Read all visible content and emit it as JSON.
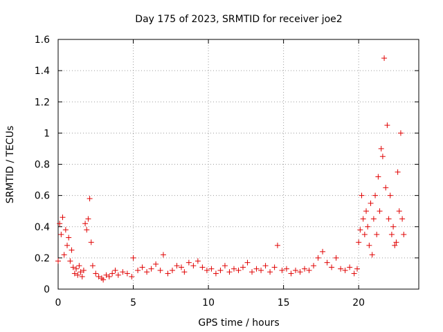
{
  "chart_data": {
    "type": "scatter",
    "title": "Day 175 of 2023, SRMTID for receiver joe2",
    "xlabel": "GPS time / hours",
    "ylabel": "SRMTID / TECUs",
    "xlim": [
      0,
      24
    ],
    "ylim": [
      0,
      1.6
    ],
    "xticks": [
      0,
      5,
      10,
      15,
      20
    ],
    "xtick_labels": [
      "0",
      "5",
      "10",
      "15",
      "20"
    ],
    "yticks": [
      0,
      0.2,
      0.4,
      0.6,
      0.8,
      1,
      1.2,
      1.4,
      1.6
    ],
    "ytick_labels": [
      "0",
      "0.2",
      "0.4",
      "0.6",
      "0.8",
      "1",
      "1.2",
      "1.4",
      "1.6"
    ],
    "grid": true,
    "marker": "+",
    "marker_color": "#e00000",
    "series": [
      {
        "name": "SRMTID",
        "x": [
          0.0,
          0.1,
          0.2,
          0.3,
          0.4,
          0.5,
          0.6,
          0.7,
          0.8,
          0.9,
          1.0,
          1.1,
          1.2,
          1.3,
          1.4,
          1.5,
          1.6,
          1.7,
          1.8,
          1.9,
          2.0,
          2.1,
          2.2,
          2.3,
          2.5,
          2.7,
          2.9,
          3.0,
          3.2,
          3.4,
          3.6,
          3.8,
          4.0,
          4.3,
          4.6,
          4.9,
          5.0,
          5.3,
          5.6,
          5.9,
          6.2,
          6.5,
          6.8,
          7.0,
          7.3,
          7.6,
          7.9,
          8.2,
          8.4,
          8.7,
          9.0,
          9.3,
          9.6,
          9.9,
          10.2,
          10.5,
          10.8,
          11.1,
          11.4,
          11.7,
          12.0,
          12.3,
          12.6,
          12.9,
          13.2,
          13.5,
          13.8,
          14.1,
          14.4,
          14.6,
          14.9,
          15.2,
          15.5,
          15.8,
          16.1,
          16.4,
          16.7,
          17.0,
          17.3,
          17.6,
          17.9,
          18.2,
          18.5,
          18.8,
          19.1,
          19.4,
          19.7,
          19.9,
          20.0,
          20.1,
          20.2,
          20.3,
          20.4,
          20.5,
          20.6,
          20.7,
          20.8,
          20.9,
          21.0,
          21.1,
          21.2,
          21.3,
          21.4,
          21.5,
          21.6,
          21.7,
          21.8,
          21.9,
          22.0,
          22.1,
          22.2,
          22.3,
          22.4,
          22.5,
          22.6,
          22.7,
          22.8,
          22.9,
          23.0
        ],
        "y": [
          0.18,
          0.42,
          0.35,
          0.46,
          0.22,
          0.38,
          0.28,
          0.33,
          0.18,
          0.25,
          0.14,
          0.1,
          0.13,
          0.09,
          0.15,
          0.11,
          0.08,
          0.12,
          0.42,
          0.38,
          0.45,
          0.58,
          0.3,
          0.15,
          0.1,
          0.08,
          0.07,
          0.06,
          0.09,
          0.08,
          0.1,
          0.12,
          0.09,
          0.11,
          0.1,
          0.08,
          0.2,
          0.12,
          0.14,
          0.11,
          0.13,
          0.16,
          0.12,
          0.22,
          0.1,
          0.12,
          0.15,
          0.14,
          0.11,
          0.17,
          0.15,
          0.18,
          0.14,
          0.12,
          0.13,
          0.1,
          0.12,
          0.15,
          0.11,
          0.13,
          0.12,
          0.14,
          0.17,
          0.11,
          0.13,
          0.12,
          0.15,
          0.11,
          0.14,
          0.28,
          0.12,
          0.13,
          0.1,
          0.12,
          0.11,
          0.13,
          0.12,
          0.15,
          0.2,
          0.24,
          0.17,
          0.14,
          0.2,
          0.13,
          0.12,
          0.14,
          0.1,
          0.13,
          0.3,
          0.38,
          0.6,
          0.45,
          0.35,
          0.5,
          0.4,
          0.28,
          0.55,
          0.22,
          0.45,
          0.6,
          0.35,
          0.72,
          0.5,
          0.9,
          0.85,
          1.48,
          0.65,
          1.05,
          0.45,
          0.6,
          0.35,
          0.4,
          0.28,
          0.3,
          0.75,
          0.5,
          1.0,
          0.45,
          0.35
        ]
      }
    ]
  }
}
